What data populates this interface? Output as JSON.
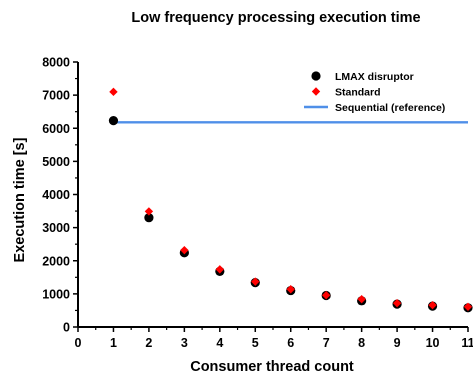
{
  "chart_data": {
    "type": "scatter",
    "title": "Low frequency processing execution time",
    "xlabel": "Consumer thread count",
    "ylabel": "Execution time [s]",
    "xlim": [
      0,
      11
    ],
    "ylim": [
      0,
      8000
    ],
    "x_ticks": [
      "0",
      "1",
      "2",
      "3",
      "4",
      "5",
      "6",
      "7",
      "8",
      "9",
      "10",
      "11"
    ],
    "y_ticks": [
      "0",
      "1000",
      "2000",
      "3000",
      "4000",
      "5000",
      "6000",
      "7000",
      "8000"
    ],
    "grid": false,
    "legend_position": "top-right",
    "series": [
      {
        "name": "LMAX disruptor",
        "marker": "circle",
        "color": "#000000",
        "x": [
          1,
          2,
          3,
          4,
          5,
          6,
          7,
          8,
          9,
          10,
          11
        ],
        "y": [
          6230,
          3300,
          2240,
          1680,
          1340,
          1100,
          950,
          790,
          690,
          630,
          580
        ]
      },
      {
        "name": "Standard",
        "marker": "diamond",
        "color": "#ff0000",
        "x": [
          1,
          2,
          3,
          4,
          5,
          6,
          7,
          8,
          9,
          10,
          11
        ],
        "y": [
          7100,
          3490,
          2320,
          1740,
          1370,
          1140,
          960,
          840,
          720,
          660,
          610
        ]
      },
      {
        "name": "Sequential (reference)",
        "marker": "line",
        "color": "#4f8fe8",
        "x": [
          1,
          11
        ],
        "y": [
          6180,
          6180
        ]
      }
    ]
  }
}
